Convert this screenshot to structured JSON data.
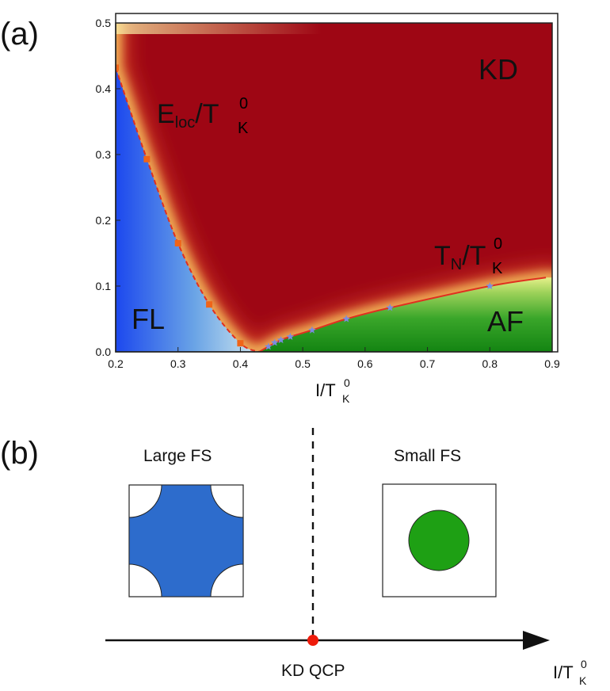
{
  "panel_a": {
    "label": "(a)",
    "chart_data": {
      "type": "line",
      "title": "",
      "xlabel": "I/T_K^0",
      "ylabel": "",
      "xlim": [
        0.2,
        0.9
      ],
      "ylim": [
        0.0,
        0.5
      ],
      "xticks": [
        "0.2",
        "0.3",
        "0.4",
        "0.5",
        "0.6",
        "0.7",
        "0.8",
        "0.9"
      ],
      "yticks": [
        "0.0",
        "0.1",
        "0.2",
        "0.3",
        "0.4",
        "0.5"
      ],
      "series": [
        {
          "name": "E_loc/T_K^0",
          "style": "dashed",
          "color": "#e03020",
          "marker": "square",
          "x": [
            0.2,
            0.25,
            0.3,
            0.35,
            0.4
          ],
          "y": [
            0.432,
            0.293,
            0.165,
            0.072,
            0.013
          ],
          "curve_x": [
            0.2,
            0.25,
            0.3,
            0.35,
            0.4,
            0.43
          ],
          "curve_y": [
            0.432,
            0.293,
            0.165,
            0.072,
            0.013,
            0.0
          ]
        },
        {
          "name": "T_N/T_K^0",
          "style": "solid",
          "color": "#e03020",
          "marker": "star",
          "x": [
            0.445,
            0.455,
            0.465,
            0.48,
            0.515,
            0.57,
            0.64,
            0.8
          ],
          "y": [
            0.008,
            0.014,
            0.018,
            0.023,
            0.033,
            0.05,
            0.067,
            0.1
          ],
          "curve_x": [
            0.43,
            0.445,
            0.465,
            0.48,
            0.515,
            0.57,
            0.64,
            0.8,
            0.89
          ],
          "curve_y": [
            0.0,
            0.008,
            0.018,
            0.023,
            0.033,
            0.05,
            0.067,
            0.1,
            0.113
          ]
        }
      ],
      "regions": [
        "KD",
        "FL",
        "AF"
      ],
      "colors": {
        "KD": "#9e0614",
        "FL": "#1c48ee",
        "AF": "#168c14",
        "line": "#e03020"
      }
    },
    "region_labels": {
      "kd": "KD",
      "fl": "FL",
      "af": "AF"
    },
    "curve_labels": {
      "eloc_main": "E",
      "eloc_sub": "loc",
      "eloc_over": "/T",
      "eloc_sup": "0",
      "eloc_sub2": "K",
      "tn_main": "T",
      "tn_sub": "N",
      "tn_over": "/T",
      "tn_sup": "0",
      "tn_sub2": "K"
    },
    "x_axis_label": {
      "main": "I/T",
      "sup": "0",
      "sub": "K"
    }
  },
  "panel_b": {
    "label": "(b)",
    "large_fs": {
      "label": "Large FS",
      "color": "#2d6ccc"
    },
    "small_fs": {
      "label": "Small FS",
      "color": "#1ea014"
    },
    "qcp_label": "KD QCP",
    "qcp_color": "#ee1c0c",
    "axis_label": {
      "main": "I/T",
      "sup": "0",
      "sub": "K"
    }
  }
}
